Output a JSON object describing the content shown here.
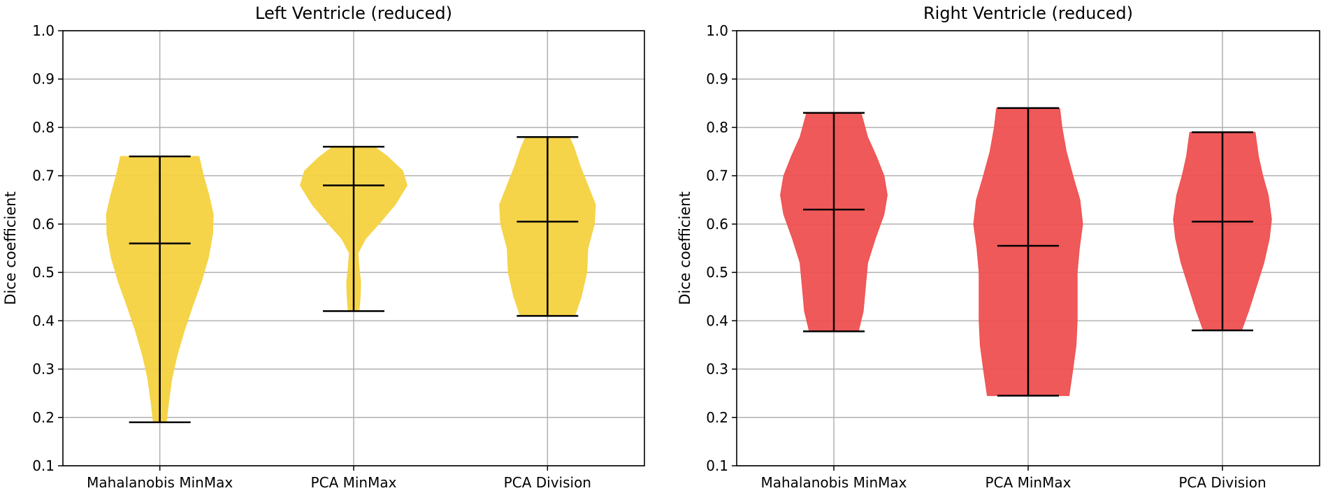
{
  "chart_data": [
    {
      "type": "violin",
      "title": "Left Ventricle (reduced)",
      "xlabel": "",
      "ylabel": "Dice coefficient",
      "ylim": [
        0.1,
        1.0
      ],
      "yticks": [
        0.1,
        0.2,
        0.3,
        0.4,
        0.5,
        0.6,
        0.7,
        0.8,
        0.9,
        1.0
      ],
      "ytick_labels": [
        "0.1",
        "0.2",
        "0.3",
        "0.4",
        "0.5",
        "0.6",
        "0.7",
        "0.8",
        "0.9",
        "1.0"
      ],
      "categories": [
        "Mahalanobis MinMax",
        "PCA MinMax",
        "PCA Division"
      ],
      "grid": true,
      "color": "#f5d240",
      "violins": [
        {
          "min": 0.19,
          "median": 0.56,
          "max": 0.74,
          "density": [
            [
              0.19,
              0.12
            ],
            [
              0.23,
              0.16
            ],
            [
              0.28,
              0.22
            ],
            [
              0.33,
              0.32
            ],
            [
              0.38,
              0.45
            ],
            [
              0.43,
              0.6
            ],
            [
              0.48,
              0.76
            ],
            [
              0.53,
              0.89
            ],
            [
              0.58,
              0.97
            ],
            [
              0.62,
              0.98
            ],
            [
              0.66,
              0.9
            ],
            [
              0.7,
              0.8
            ],
            [
              0.74,
              0.72
            ]
          ]
        },
        {
          "min": 0.42,
          "median": 0.68,
          "max": 0.76,
          "density": [
            [
              0.42,
              0.1
            ],
            [
              0.45,
              0.12
            ],
            [
              0.48,
              0.13
            ],
            [
              0.51,
              0.1
            ],
            [
              0.54,
              0.08
            ],
            [
              0.57,
              0.22
            ],
            [
              0.6,
              0.46
            ],
            [
              0.64,
              0.76
            ],
            [
              0.68,
              0.98
            ],
            [
              0.71,
              0.9
            ],
            [
              0.74,
              0.62
            ],
            [
              0.76,
              0.38
            ]
          ]
        },
        {
          "min": 0.41,
          "median": 0.605,
          "max": 0.78,
          "density": [
            [
              0.41,
              0.5
            ],
            [
              0.45,
              0.62
            ],
            [
              0.5,
              0.72
            ],
            [
              0.55,
              0.74
            ],
            [
              0.6,
              0.86
            ],
            [
              0.64,
              0.88
            ],
            [
              0.68,
              0.74
            ],
            [
              0.72,
              0.6
            ],
            [
              0.76,
              0.48
            ],
            [
              0.78,
              0.4
            ]
          ]
        }
      ]
    },
    {
      "type": "violin",
      "title": "Right Ventricle (reduced)",
      "xlabel": "",
      "ylabel": "Dice coefficient",
      "ylim": [
        0.1,
        1.0
      ],
      "yticks": [
        0.1,
        0.2,
        0.3,
        0.4,
        0.5,
        0.6,
        0.7,
        0.8,
        0.9,
        1.0
      ],
      "ytick_labels": [
        "0.1",
        "0.2",
        "0.3",
        "0.4",
        "0.5",
        "0.6",
        "0.7",
        "0.8",
        "0.9",
        "1.0"
      ],
      "categories": [
        "Mahalanobis MinMax",
        "PCA MinMax",
        "PCA Division"
      ],
      "grid": true,
      "color": "#ef5050",
      "violins": [
        {
          "min": 0.378,
          "median": 0.63,
          "max": 0.83,
          "density": [
            [
              0.378,
              0.45
            ],
            [
              0.42,
              0.54
            ],
            [
              0.47,
              0.58
            ],
            [
              0.52,
              0.62
            ],
            [
              0.57,
              0.76
            ],
            [
              0.62,
              0.92
            ],
            [
              0.66,
              0.98
            ],
            [
              0.7,
              0.92
            ],
            [
              0.74,
              0.78
            ],
            [
              0.78,
              0.62
            ],
            [
              0.83,
              0.5
            ]
          ]
        },
        {
          "min": 0.245,
          "median": 0.555,
          "max": 0.84,
          "density": [
            [
              0.245,
              0.75
            ],
            [
              0.3,
              0.82
            ],
            [
              0.35,
              0.88
            ],
            [
              0.4,
              0.9
            ],
            [
              0.45,
              0.9
            ],
            [
              0.5,
              0.9
            ],
            [
              0.55,
              0.94
            ],
            [
              0.6,
              1.0
            ],
            [
              0.65,
              0.95
            ],
            [
              0.7,
              0.82
            ],
            [
              0.75,
              0.7
            ],
            [
              0.8,
              0.62
            ],
            [
              0.84,
              0.58
            ]
          ]
        },
        {
          "min": 0.38,
          "median": 0.605,
          "max": 0.79,
          "density": [
            [
              0.38,
              0.35
            ],
            [
              0.42,
              0.48
            ],
            [
              0.47,
              0.62
            ],
            [
              0.52,
              0.76
            ],
            [
              0.57,
              0.86
            ],
            [
              0.61,
              0.9
            ],
            [
              0.66,
              0.84
            ],
            [
              0.7,
              0.74
            ],
            [
              0.74,
              0.66
            ],
            [
              0.79,
              0.6
            ]
          ]
        }
      ]
    }
  ]
}
